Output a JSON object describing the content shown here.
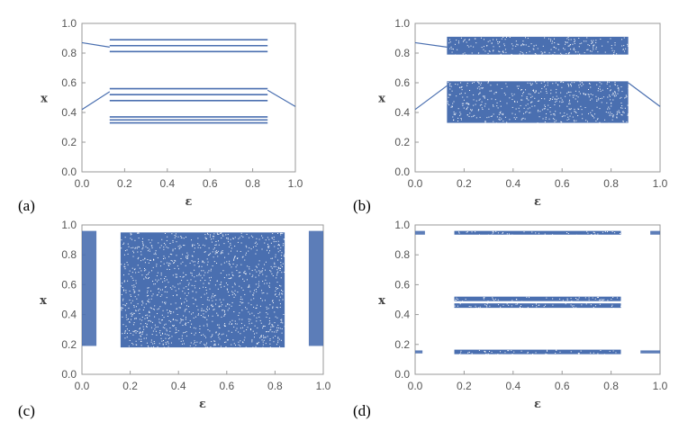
{
  "colors": {
    "points": "#4a6fb0",
    "axis": "#9a9a9a",
    "text": "#555555"
  },
  "chart_data": [
    {
      "panel": "(a)",
      "type": "scatter",
      "xlabel": "ε",
      "ylabel": "x",
      "xlim": [
        0,
        1
      ],
      "ylim": [
        0,
        1
      ],
      "xticks": [
        "0.0",
        "0.2",
        "0.4",
        "0.6",
        "0.8",
        "1.0"
      ],
      "yticks": [
        "0.0",
        "0.2",
        "0.4",
        "0.6",
        "0.8",
        "1.0"
      ],
      "structure": {
        "window": [
          0.13,
          0.87
        ],
        "lines": [
          0.89,
          0.85,
          0.81,
          0.56,
          0.52,
          0.48,
          0.37,
          0.35,
          0.33
        ],
        "edge_branches": [
          {
            "from": [
              0.0,
              0.87
            ],
            "to": [
              0.13,
              0.84
            ]
          },
          {
            "from": [
              0.0,
              0.42
            ],
            "to": [
              0.13,
              0.54
            ]
          },
          {
            "from": [
              0.87,
              0.55
            ],
            "to": [
              1.0,
              0.44
            ]
          }
        ]
      }
    },
    {
      "panel": "(b)",
      "type": "scatter",
      "xlabel": "ε",
      "ylabel": "x",
      "xlim": [
        0,
        1
      ],
      "ylim": [
        0,
        1
      ],
      "xticks": [
        "0.0",
        "0.2",
        "0.4",
        "0.6",
        "0.8",
        "1.0"
      ],
      "yticks": [
        "0.0",
        "0.2",
        "0.4",
        "0.6",
        "0.8",
        "1.0"
      ],
      "structure": {
        "window": [
          0.13,
          0.87
        ],
        "bands": [
          [
            0.79,
            0.91
          ],
          [
            0.33,
            0.61
          ]
        ],
        "edge_branches": [
          {
            "from": [
              0.0,
              0.87
            ],
            "to": [
              0.13,
              0.84
            ]
          },
          {
            "from": [
              0.0,
              0.42
            ],
            "to": [
              0.13,
              0.58
            ]
          },
          {
            "from": [
              0.87,
              0.6
            ],
            "to": [
              1.0,
              0.44
            ]
          }
        ]
      }
    },
    {
      "panel": "(c)",
      "type": "scatter",
      "xlabel": "ε",
      "ylabel": "x",
      "xlim": [
        0,
        1
      ],
      "ylim": [
        0,
        1
      ],
      "xticks": [
        "0.0",
        "0.2",
        "0.4",
        "0.6",
        "0.8",
        "1.0"
      ],
      "yticks": [
        "0.0",
        "0.2",
        "0.4",
        "0.6",
        "0.8",
        "1.0"
      ],
      "structure": {
        "window": [
          0.16,
          0.84
        ],
        "bands": [
          [
            0.18,
            0.95
          ]
        ],
        "edge_bands": [
          [
            0.0,
            0.06,
            0.19,
            0.96
          ],
          [
            0.94,
            1.0,
            0.19,
            0.96
          ]
        ]
      }
    },
    {
      "panel": "(d)",
      "type": "scatter",
      "xlabel": "ε",
      "ylabel": "x",
      "xlim": [
        0,
        1
      ],
      "ylim": [
        0,
        1
      ],
      "xticks": [
        "0.0",
        "0.2",
        "0.4",
        "0.6",
        "0.8",
        "1.0"
      ],
      "yticks": [
        "0.0",
        "0.2",
        "0.4",
        "0.6",
        "0.8",
        "1.0"
      ],
      "structure": {
        "window": [
          0.16,
          0.84
        ],
        "bands": [
          [
            0.935,
            0.96
          ],
          [
            0.49,
            0.52
          ],
          [
            0.445,
            0.475
          ],
          [
            0.135,
            0.165
          ]
        ],
        "edge_bands": [
          [
            0.0,
            0.04,
            0.935,
            0.96
          ],
          [
            0.96,
            1.0,
            0.935,
            0.96
          ],
          [
            0.0,
            0.03,
            0.14,
            0.16
          ],
          [
            0.92,
            1.0,
            0.14,
            0.16
          ]
        ]
      }
    }
  ]
}
